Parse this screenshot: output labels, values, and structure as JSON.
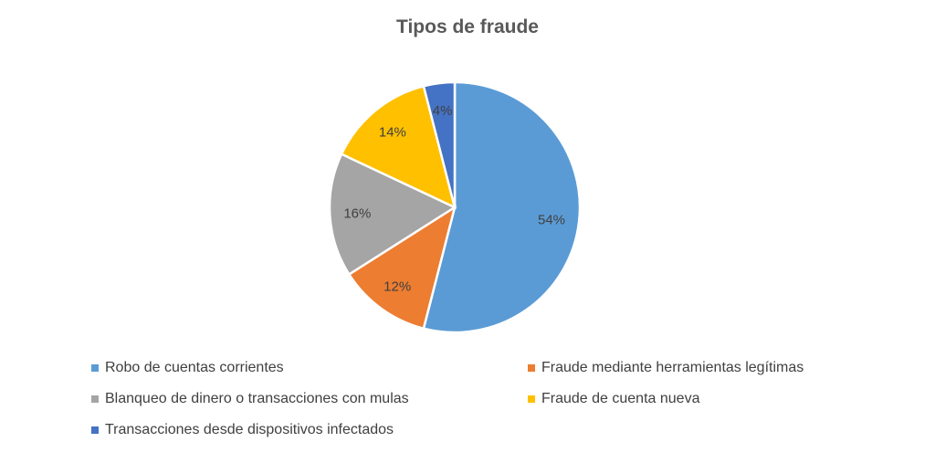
{
  "chart_data": {
    "type": "pie",
    "title": "Tipos de fraude",
    "categories": [
      "Robo de cuentas corrientes",
      "Fraude mediante herramientas legítimas",
      "Blanqueo de dinero o transacciones con mulas",
      "Fraude de cuenta nueva",
      "Transacciones desde dispositivos infectados"
    ],
    "values": [
      54,
      12,
      16,
      14,
      4
    ],
    "data_labels": [
      "54%",
      "12%",
      "16%",
      "14%",
      "4%"
    ],
    "colors": [
      "#5B9BD5",
      "#ED7D31",
      "#A5A5A5",
      "#FFC000",
      "#4472C4"
    ],
    "legend": "bottom"
  }
}
